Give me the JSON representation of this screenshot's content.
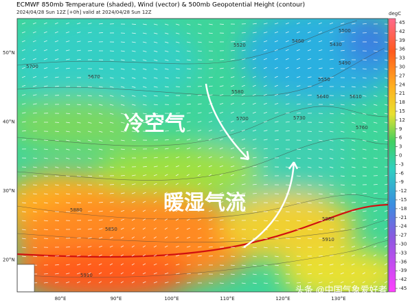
{
  "header": {
    "title": "ECMWF 850mb Temperature (shaded), Wind (vector) & 500mb Geopotential Height (contour)",
    "subtitle": "2024/04/28 Sun 12Z [+0h] valid at 2024/04/28 Sun 12Z"
  },
  "colorbar": {
    "unit": "degC",
    "ticks": [
      45,
      42,
      39,
      36,
      33,
      30,
      27,
      24,
      21,
      18,
      15,
      12,
      9,
      6,
      3,
      0,
      -3,
      -6,
      -9,
      -12,
      -15,
      -18,
      -21,
      -24,
      -27,
      -30,
      -33,
      -36,
      -39,
      -42,
      -45
    ]
  },
  "map": {
    "lat_labels": [
      "50°N",
      "40°N",
      "30°N",
      "20°N"
    ],
    "lon_labels": [
      "80°E",
      "90°E",
      "100°E",
      "110°E",
      "120°E",
      "130°E"
    ],
    "contour_labels": [
      "5500",
      "5460",
      "5520",
      "5430",
      "5490",
      "5700",
      "5670",
      "5580",
      "5550",
      "5640",
      "5610",
      "5730",
      "5760",
      "5700",
      "5880",
      "5850",
      "5880",
      "5910",
      "5910"
    ]
  },
  "annotations": {
    "cold_air": "冷空气",
    "warm_moist_flow": "暖湿气流"
  },
  "watermark": "头条 @中国气象爱好者"
}
